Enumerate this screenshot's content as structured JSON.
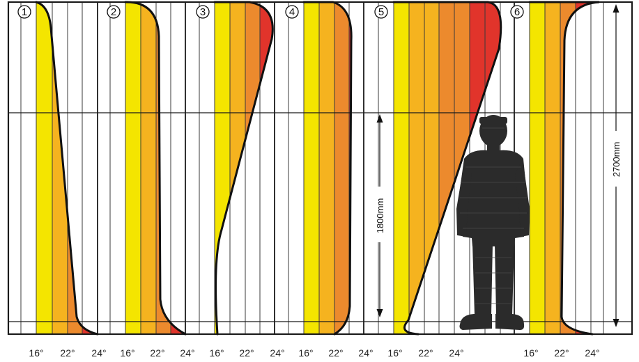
{
  "colors": {
    "frame": "#1a1a1a",
    "grid": "#333333",
    "band1": "#f4e500",
    "band2": "#f5b31f",
    "band3": "#ec8a2d",
    "band4": "#e1342b",
    "silhouette": "#2a2a2a"
  },
  "panels": [
    {
      "number": "1"
    },
    {
      "number": "2"
    },
    {
      "number": "3"
    },
    {
      "number": "4"
    },
    {
      "number": "5"
    },
    {
      "number": "6"
    }
  ],
  "temperature_labels": [
    {
      "text": "16°"
    },
    {
      "text": "22°"
    },
    {
      "text": "24°"
    },
    {
      "text": "16°"
    },
    {
      "text": "22°"
    },
    {
      "text": "24°"
    },
    {
      "text": "16°"
    },
    {
      "text": "22°"
    },
    {
      "text": "24°"
    },
    {
      "text": "16°"
    },
    {
      "text": "22°"
    },
    {
      "text": "24°"
    },
    {
      "text": "16°"
    },
    {
      "text": "22°"
    },
    {
      "text": "24°"
    },
    {
      "text": "16°"
    },
    {
      "text": "22°"
    },
    {
      "text": "24°"
    }
  ],
  "dimensions": {
    "person_height": "1800mm",
    "room_height": "2700mm"
  },
  "icons": {
    "person": "person-silhouette-icon",
    "arrow": "double-arrow-icon"
  }
}
